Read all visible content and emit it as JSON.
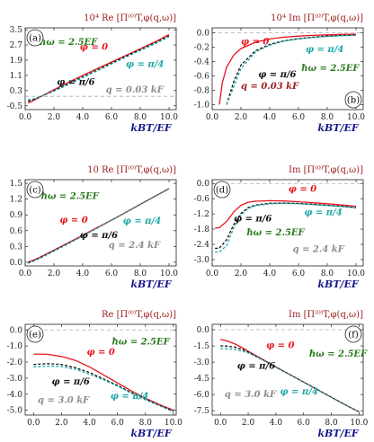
{
  "chart_data": [
    {
      "id": "a",
      "type": "line",
      "title": "10⁴ Re [Π⁽⁰⁾T,φ(q,ω)]",
      "panel_label": "(a)",
      "xlabel": "kBT/EF",
      "xlim": [
        0,
        10.5
      ],
      "ylim": [
        -0.7,
        3.6
      ],
      "xticks": [
        0.0,
        2.0,
        4.0,
        6.0,
        8.0,
        10.0
      ],
      "yticks": [
        -0.5,
        0.3,
        1.1,
        1.9,
        2.7,
        3.5
      ],
      "hline": 0.0,
      "show_xlabel": true,
      "x": [
        0.2,
        0.5,
        1.0,
        2.0,
        3.0,
        4.0,
        5.0,
        6.0,
        7.0,
        8.0,
        9.0,
        10.0
      ],
      "series": [
        {
          "name": "φ = 0",
          "color": "#e8141c",
          "dash": "solid",
          "values": [
            -0.35,
            -0.25,
            -0.05,
            0.35,
            0.73,
            1.1,
            1.45,
            1.8,
            2.15,
            2.5,
            2.85,
            3.25
          ]
        },
        {
          "name": "φ = π/6",
          "color": "#111111",
          "dash": "dashed",
          "values": [
            -0.25,
            -0.2,
            -0.05,
            0.3,
            0.66,
            1.02,
            1.38,
            1.74,
            2.1,
            2.45,
            2.8,
            3.18
          ]
        },
        {
          "name": "φ = π/4",
          "color": "#1aa6a6",
          "dash": "dashed",
          "values": [
            -0.18,
            -0.15,
            -0.03,
            0.27,
            0.62,
            0.98,
            1.34,
            1.7,
            2.06,
            2.41,
            2.76,
            3.13
          ]
        }
      ],
      "annotations": [
        {
          "text": "ħω = 2.5EF",
          "color": "#2a7a1e",
          "x": 1.0,
          "y": 2.7
        },
        {
          "text": "φ = 0",
          "color": "#e8141c",
          "x": 3.8,
          "y": 2.45
        },
        {
          "text": "φ = π/4",
          "color": "#1aa6a6",
          "x": 7.0,
          "y": 1.55
        },
        {
          "text": "φ = π/6",
          "color": "#111111",
          "x": 2.2,
          "y": 0.6
        },
        {
          "text": "q = 0.03 kF",
          "color": "#8c8c8c",
          "x": 5.6,
          "y": 0.2
        }
      ]
    },
    {
      "id": "b",
      "type": "line",
      "title": "10⁴ Im [Π⁽⁰⁾T,φ(q,ω)]",
      "panel_label": "(b)",
      "xlabel": "kBT/EF",
      "xlim": [
        0,
        10.5
      ],
      "ylim": [
        -1.07,
        0.07
      ],
      "xticks": [
        0.0,
        2.0,
        4.0,
        6.0,
        8.0,
        10.0
      ],
      "yticks": [
        -1.0,
        -0.8,
        -0.6,
        -0.4,
        -0.2,
        0.0
      ],
      "hline": 0.0,
      "show_xlabel": true,
      "x": [
        0.5,
        0.7,
        1.0,
        1.5,
        2.0,
        3.0,
        4.0,
        5.0,
        6.0,
        7.0,
        8.0,
        9.0,
        10.0
      ],
      "series": [
        {
          "name": "φ = 0",
          "color": "#e8141c",
          "dash": "solid",
          "values": [
            -1.0,
            -0.7,
            -0.48,
            -0.31,
            -0.22,
            -0.13,
            -0.085,
            -0.06,
            -0.045,
            -0.035,
            -0.028,
            -0.022,
            -0.018
          ]
        },
        {
          "name": "φ = π/6",
          "color": "#111111",
          "dash": "dashed",
          "values": [
            null,
            null,
            -1.0,
            -0.68,
            -0.45,
            -0.25,
            -0.16,
            -0.11,
            -0.08,
            -0.06,
            -0.045,
            -0.036,
            -0.03
          ]
        },
        {
          "name": "φ = π/4",
          "color": "#1aa6a6",
          "dash": "dashed",
          "values": [
            null,
            null,
            -1.0,
            -0.75,
            -0.5,
            -0.27,
            -0.17,
            -0.115,
            -0.085,
            -0.065,
            -0.05,
            -0.04,
            -0.033
          ]
        }
      ],
      "annotations": [
        {
          "text": "φ = 0",
          "color": "#e8141c",
          "x": 2.0,
          "y": -0.16
        },
        {
          "text": "φ = π/4",
          "color": "#1aa6a6",
          "x": 6.5,
          "y": -0.27
        },
        {
          "text": "ħω = 2.5EF",
          "color": "#2a7a1e",
          "x": 6.2,
          "y": -0.53
        },
        {
          "text": "φ = π/6",
          "color": "#111111",
          "x": 3.2,
          "y": -0.62
        },
        {
          "text": "q = 0.03 kF",
          "color": "#9b1c1c",
          "x": 2.0,
          "y": -0.78
        }
      ]
    },
    {
      "id": "c",
      "type": "line",
      "title": "10 Re [Π⁽⁰⁾T,φ(q,ω)]",
      "panel_label": "(c)",
      "xlabel": "kBT/EF",
      "xlim": [
        0,
        10.5
      ],
      "ylim": [
        -0.07,
        1.57
      ],
      "xticks": [
        0.0,
        2.0,
        4.0,
        6.0,
        8.0,
        10.0
      ],
      "yticks": [
        0.0,
        0.3,
        0.6,
        0.9,
        1.2,
        1.5
      ],
      "hline": null,
      "show_xlabel": true,
      "x": [
        0.2,
        0.5,
        1.0,
        2.0,
        3.0,
        4.0,
        5.0,
        6.0,
        7.0,
        8.0,
        9.0,
        10.0
      ],
      "series": [
        {
          "name": "φ = 0",
          "color": "#e8141c",
          "dash": "solid",
          "values": [
            0.0,
            0.03,
            0.09,
            0.23,
            0.37,
            0.51,
            0.66,
            0.8,
            0.95,
            1.1,
            1.25,
            1.4
          ]
        },
        {
          "name": "φ = π/6",
          "color": "#111111",
          "dash": "dashed",
          "values": [
            -0.01,
            0.02,
            0.08,
            0.22,
            0.36,
            0.5,
            0.65,
            0.8,
            0.95,
            1.1,
            1.25,
            1.4
          ]
        },
        {
          "name": "φ = π/4",
          "color": "#1aa6a6",
          "dash": "dashed",
          "values": [
            -0.02,
            0.01,
            0.07,
            0.21,
            0.35,
            0.5,
            0.65,
            0.8,
            0.95,
            1.1,
            1.25,
            1.4
          ]
        }
      ],
      "annotations": [
        {
          "text": "ħω = 2.5EF",
          "color": "#2a7a1e",
          "x": 1.1,
          "y": 1.2
        },
        {
          "text": "φ = 0",
          "color": "#e8141c",
          "x": 2.4,
          "y": 0.75
        },
        {
          "text": "φ = π/4",
          "color": "#1aa6a6",
          "x": 6.8,
          "y": 0.73
        },
        {
          "text": "φ = π/6",
          "color": "#111111",
          "x": 3.8,
          "y": 0.46
        },
        {
          "text": "q = 2.4 kF",
          "color": "#8c8c8c",
          "x": 5.8,
          "y": 0.27
        }
      ]
    },
    {
      "id": "d",
      "type": "line",
      "title": "Im [Π⁽⁰⁾T,φ(q,ω)]",
      "panel_label": "(d)",
      "xlabel": "kBT/EF",
      "xlim": [
        0,
        10.5
      ],
      "ylim": [
        -3.25,
        0.15
      ],
      "xticks": [
        0.0,
        2.0,
        4.0,
        6.0,
        8.0,
        10.0
      ],
      "yticks": [
        -3.0,
        -2.4,
        -1.8,
        -1.2,
        -0.6,
        0.0
      ],
      "hline": 0.0,
      "show_xlabel": true,
      "x": [
        0.2,
        0.5,
        1.0,
        1.5,
        2.0,
        2.5,
        3.0,
        4.0,
        5.0,
        6.0,
        7.0,
        8.0,
        9.0,
        10.0
      ],
      "series": [
        {
          "name": "φ = 0",
          "color": "#e8141c",
          "dash": "solid",
          "values": [
            -1.76,
            -1.74,
            -1.5,
            -1.12,
            -0.86,
            -0.74,
            -0.7,
            -0.68,
            -0.69,
            -0.72,
            -0.76,
            -0.8,
            -0.85,
            -0.9
          ]
        },
        {
          "name": "φ = π/6",
          "color": "#111111",
          "dash": "dashed",
          "values": [
            -2.56,
            -2.55,
            -2.22,
            -1.62,
            -1.18,
            -0.95,
            -0.85,
            -0.78,
            -0.77,
            -0.79,
            -0.82,
            -0.86,
            -0.9,
            -0.95
          ]
        },
        {
          "name": "φ = π/4",
          "color": "#1aa6a6",
          "dash": "dashed",
          "values": [
            -2.7,
            -2.7,
            -2.45,
            -1.75,
            -1.25,
            -0.99,
            -0.88,
            -0.8,
            -0.78,
            -0.8,
            -0.83,
            -0.87,
            -0.91,
            -0.96
          ]
        }
      ],
      "annotations": [
        {
          "text": "φ = 0",
          "color": "#e8141c",
          "x": 5.3,
          "y": -0.32
        },
        {
          "text": "φ = π/4",
          "color": "#1aa6a6",
          "x": 6.4,
          "y": -1.25
        },
        {
          "text": "φ = π/6",
          "color": "#111111",
          "x": 1.5,
          "y": -1.5
        },
        {
          "text": "ħω = 2.5EF",
          "color": "#2a7a1e",
          "x": 2.4,
          "y": -2.05
        },
        {
          "text": "q = 2.4 kF",
          "color": "#8c8c8c",
          "x": 5.6,
          "y": -2.7
        }
      ]
    },
    {
      "id": "e",
      "type": "line",
      "title": "Re [Π⁽⁰⁾T,φ(q,ω)]",
      "panel_label": "(e)",
      "xlabel": "kBT/EF",
      "xlim": [
        -0.6,
        10.2
      ],
      "ylim": [
        -5.3,
        0.35
      ],
      "xticks": [
        0.0,
        2.0,
        4.0,
        6.0,
        8.0,
        10.0
      ],
      "yticks": [
        -5.0,
        -4.0,
        -3.0,
        -2.0,
        -1.0,
        0.0
      ],
      "hline": 0.0,
      "show_xlabel": true,
      "x": [
        0.0,
        1.0,
        2.0,
        3.0,
        4.0,
        5.0,
        6.0,
        7.0,
        8.0,
        9.0,
        10.0
      ],
      "series": [
        {
          "name": "φ = 0",
          "color": "#e8141c",
          "dash": "solid",
          "values": [
            -1.5,
            -1.52,
            -1.65,
            -1.9,
            -2.3,
            -2.8,
            -3.3,
            -3.8,
            -4.25,
            -4.65,
            -5.0
          ]
        },
        {
          "name": "φ = π/6",
          "color": "#111111",
          "dash": "dashed",
          "values": [
            -2.15,
            -2.1,
            -2.15,
            -2.35,
            -2.65,
            -3.05,
            -3.45,
            -3.9,
            -4.3,
            -4.7,
            -5.05
          ]
        },
        {
          "name": "φ = π/4",
          "color": "#1aa6a6",
          "dash": "dashed",
          "values": [
            -2.3,
            -2.25,
            -2.28,
            -2.45,
            -2.75,
            -3.1,
            -3.5,
            -3.95,
            -4.35,
            -4.72,
            -5.1
          ]
        }
      ],
      "annotations": [
        {
          "text": "ħω = 2.5EF",
          "color": "#2a7a1e",
          "x": 5.6,
          "y": -0.9
        },
        {
          "text": "φ = 0",
          "color": "#e8141c",
          "x": 3.8,
          "y": -1.55
        },
        {
          "text": "φ = π/6",
          "color": "#111111",
          "x": 1.3,
          "y": -3.4
        },
        {
          "text": "q = 3.0 kF",
          "color": "#8c8c8c",
          "x": 0.3,
          "y": -4.55
        },
        {
          "text": "φ = π/4",
          "color": "#1aa6a6",
          "x": 5.5,
          "y": -4.3
        }
      ]
    },
    {
      "id": "f",
      "type": "line",
      "title": "Im [Π⁽⁰⁾T,φ(q,ω)]",
      "panel_label": "(f)",
      "xlabel": "kBT/EF",
      "xlim": [
        -0.6,
        10.3
      ],
      "ylim": [
        -7.9,
        0.5
      ],
      "xticks": [
        0.0,
        2.0,
        4.0,
        6.0,
        8.0,
        10.0
      ],
      "yticks": [
        -7.5,
        -6.0,
        -4.5,
        -3.0,
        -1.5,
        0.0
      ],
      "hline": 0.0,
      "show_xlabel": true,
      "x": [
        0.0,
        0.5,
        1.0,
        1.5,
        2.0,
        3.0,
        4.0,
        5.0,
        6.0,
        7.0,
        8.0,
        9.0,
        10.0
      ],
      "series": [
        {
          "name": "φ = 0",
          "color": "#e8141c",
          "dash": "solid",
          "values": [
            -0.9,
            -1.05,
            -1.3,
            -1.62,
            -2.0,
            -2.72,
            -3.45,
            -4.15,
            -4.85,
            -5.55,
            -6.25,
            -6.95,
            -7.6
          ]
        },
        {
          "name": "φ = π/6",
          "color": "#111111",
          "dash": "dashed",
          "values": [
            -1.5,
            -1.52,
            -1.6,
            -1.78,
            -2.05,
            -2.74,
            -3.46,
            -4.15,
            -4.85,
            -5.55,
            -6.25,
            -6.95,
            -7.6
          ]
        },
        {
          "name": "φ = π/4",
          "color": "#1aa6a6",
          "dash": "dashed",
          "values": [
            -1.75,
            -1.76,
            -1.82,
            -1.95,
            -2.15,
            -2.78,
            -3.48,
            -4.16,
            -4.86,
            -5.56,
            -6.26,
            -6.96,
            -7.6
          ]
        }
      ],
      "annotations": [
        {
          "text": "φ = 0",
          "color": "#e8141c",
          "x": 3.3,
          "y": -1.7
        },
        {
          "text": "ħω = 2.5EF",
          "color": "#2a7a1e",
          "x": 6.4,
          "y": -2.5
        },
        {
          "text": "φ = π/6",
          "color": "#111111",
          "x": 1.2,
          "y": -3.6
        },
        {
          "text": "q = 3.0 kF",
          "color": "#8c8c8c",
          "x": 0.3,
          "y": -6.25
        },
        {
          "text": "φ = π/4",
          "color": "#1aa6a6",
          "x": 4.3,
          "y": -6.0
        }
      ]
    }
  ]
}
